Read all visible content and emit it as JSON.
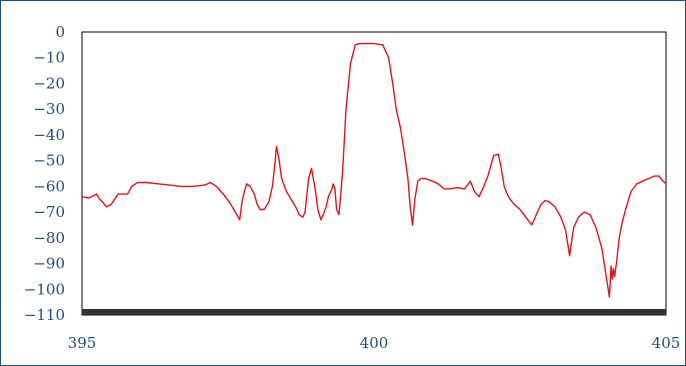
{
  "chart_data": {
    "type": "line",
    "title": "",
    "xlabel": "",
    "ylabel": "",
    "xlim": [
      395,
      405
    ],
    "ylim": [
      -110,
      0
    ],
    "x_ticks": [
      395,
      400,
      405
    ],
    "x_tick_labels": [
      "395",
      "400",
      "405"
    ],
    "y_ticks": [
      0,
      -10,
      -20,
      -30,
      -40,
      -50,
      -60,
      -70,
      -80,
      -90,
      -100,
      -110
    ],
    "y_tick_labels": [
      "0",
      "−10",
      "−20",
      "−30",
      "−40",
      "−50",
      "−60",
      "−70",
      "−80",
      "−90",
      "−100",
      "−110"
    ],
    "grid": false,
    "legend": "none",
    "colors": {
      "series": "#e0141e",
      "axis_text": "#1f4e79",
      "frame": "#1f4e79",
      "plot_border": "#000000",
      "noise_floor": "#333333"
    },
    "series": [
      {
        "x": [
          395.0,
          395.12,
          395.25,
          395.3,
          395.35,
          395.42,
          395.5,
          395.56,
          395.62,
          395.7,
          395.78,
          395.85,
          395.95,
          396.1,
          396.3,
          396.5,
          396.7,
          396.9,
          397.1,
          397.2,
          397.3,
          397.42,
          397.52,
          397.6,
          397.65,
          397.7,
          397.74,
          397.78,
          397.82,
          397.88,
          397.95,
          398.0,
          398.05,
          398.12,
          398.2,
          398.26,
          398.3,
          398.33,
          398.37,
          398.42,
          398.5,
          398.58,
          398.66,
          398.72,
          398.78,
          398.82,
          398.88,
          398.93,
          398.96,
          399.0,
          399.04,
          399.09,
          399.13,
          399.18,
          399.22,
          399.28,
          399.3,
          399.33,
          399.36,
          399.4,
          399.46,
          399.52,
          399.6,
          399.68,
          399.75,
          399.85,
          400.0,
          400.15,
          400.25,
          400.32,
          400.38,
          400.45,
          400.52,
          400.58,
          400.62,
          400.66,
          400.7,
          400.75,
          400.8,
          400.88,
          401.0,
          401.1,
          401.2,
          401.3,
          401.42,
          401.55,
          401.65,
          401.72,
          401.8,
          401.88,
          401.95,
          402.05,
          402.13,
          402.18,
          402.23,
          402.28,
          402.33,
          402.4,
          402.5,
          402.6,
          402.7,
          402.8,
          402.86,
          402.93,
          403.0,
          403.1,
          403.2,
          403.28,
          403.35,
          403.38,
          403.42,
          403.5,
          403.6,
          403.7,
          403.8,
          403.9,
          403.97,
          404.03,
          404.06,
          404.08,
          404.1,
          404.12,
          404.15,
          404.18,
          404.2,
          404.25,
          404.32,
          404.4,
          404.5,
          404.6,
          404.7,
          404.8,
          404.88,
          404.95,
          405.0
        ],
        "y": [
          -64,
          -64.5,
          -63,
          -65,
          -66,
          -68,
          -67,
          -65,
          -63,
          -63,
          -63,
          -60,
          -58.5,
          -58.5,
          -59,
          -59.5,
          -60,
          -60,
          -59.5,
          -58.5,
          -60,
          -63,
          -66,
          -69,
          -71,
          -73,
          -66,
          -62,
          -59,
          -60,
          -63,
          -67,
          -69,
          -69,
          -66,
          -60,
          -52,
          -44.5,
          -49,
          -57,
          -62,
          -65,
          -68,
          -71,
          -72,
          -70,
          -57,
          -53,
          -57,
          -62,
          -69,
          -73,
          -71,
          -68,
          -64,
          -61,
          -59,
          -61,
          -69,
          -71,
          -55,
          -30,
          -12,
          -5,
          -4.5,
          -4.5,
          -4.5,
          -5,
          -10,
          -20,
          -30,
          -37,
          -47,
          -57,
          -68,
          -75,
          -65,
          -58,
          -57,
          -57,
          -58,
          -59,
          -61,
          -61,
          -60.5,
          -61,
          -58,
          -62,
          -64,
          -60,
          -56,
          -48,
          -47.5,
          -53,
          -60,
          -63,
          -65,
          -67,
          -69,
          -72,
          -75,
          -70,
          -67,
          -65.5,
          -66,
          -68,
          -72,
          -77,
          -87,
          -82,
          -76,
          -72,
          -70,
          -71,
          -76,
          -84,
          -94,
          -103,
          -91,
          -96,
          -92,
          -95,
          -90,
          -84,
          -80,
          -74,
          -68,
          -62,
          -59,
          -58,
          -57,
          -56,
          -56,
          -58,
          -59
        ]
      }
    ]
  }
}
